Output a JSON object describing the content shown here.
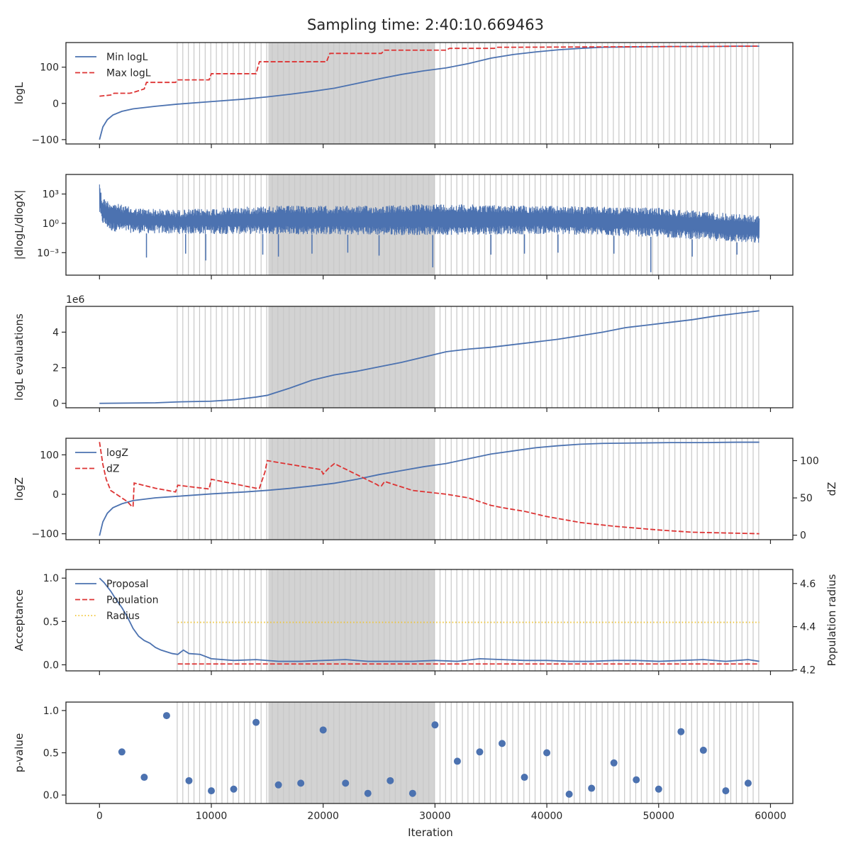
{
  "title": "Sampling time: 2:40:10.669463",
  "x_axis": {
    "label": "Iteration",
    "ticks": [
      0,
      10000,
      20000,
      30000,
      40000,
      50000,
      60000
    ],
    "xlim": [
      -3000,
      62000
    ]
  },
  "colors": {
    "blue": "#4c72b0",
    "red": "#dd3333",
    "gold": "#f0c430",
    "band": "#d3d3d3",
    "vline": "#c8c8c8"
  },
  "shading": {
    "dense_region": [
      15100,
      30000
    ],
    "vlines": [
      6950,
      7450,
      7950,
      8450,
      8950,
      9450,
      9950,
      10450,
      10950,
      11450,
      11950,
      12450,
      12950,
      13450,
      13950,
      14450,
      14950,
      15450,
      15950,
      16450,
      16950,
      17450,
      17950,
      18450,
      18950,
      19450,
      19950,
      20450,
      20950,
      21450,
      21950,
      22450,
      22950,
      23450,
      23950,
      24450,
      24950,
      25450,
      25950,
      26450,
      26950,
      27450,
      27950,
      28450,
      28950,
      29450,
      29950,
      30450,
      30950,
      31450,
      31950,
      32450,
      32950,
      33450,
      33950,
      34450,
      34950,
      35450,
      35950,
      36450,
      36950,
      37450,
      37950,
      38450,
      38950,
      39450,
      39950,
      40450,
      40950,
      41450,
      41950,
      42450,
      42950,
      43450,
      43950,
      44450,
      44950,
      45450,
      45950,
      46450,
      46950,
      47450,
      47950,
      48450,
      48950,
      49450,
      49950,
      50450,
      50950,
      51450,
      51950,
      52450,
      52950,
      53450,
      53950,
      54450,
      54950,
      55450,
      55950,
      56450,
      56950,
      57450,
      57950,
      58450,
      58950
    ]
  },
  "chart_data": [
    {
      "type": "line",
      "ylabel": "logL",
      "yticks": [
        -100,
        0,
        100
      ],
      "ylim": [
        -112,
        168
      ],
      "legend": "top-left",
      "series": [
        {
          "name": "Min logL",
          "style": "solid",
          "color": "#4c72b0",
          "x": [
            0,
            300,
            700,
            1200,
            2000,
            3000,
            5000,
            7000,
            10000,
            13000,
            15000,
            17000,
            19000,
            21000,
            23000,
            25000,
            27000,
            29000,
            31000,
            33000,
            35000,
            37000,
            39000,
            41000,
            43000,
            45000,
            48000,
            51000,
            54000,
            57000,
            59000
          ],
          "y": [
            -100,
            -65,
            -45,
            -32,
            -22,
            -15,
            -8,
            -2,
            5,
            12,
            18,
            25,
            33,
            42,
            55,
            68,
            80,
            90,
            98,
            110,
            125,
            135,
            142,
            148,
            152,
            155,
            156,
            157,
            157,
            158,
            158
          ]
        },
        {
          "name": "Max logL",
          "style": "dashed",
          "color": "#dd3333",
          "x": [
            0,
            1000,
            1300,
            2700,
            3000,
            4000,
            4200,
            6800,
            7000,
            9800,
            10000,
            14000,
            14300,
            20300,
            20600,
            25200,
            25500,
            31000,
            31300,
            35300,
            35600,
            37000,
            59000
          ],
          "y": [
            20,
            23,
            28,
            28,
            30,
            40,
            58,
            58,
            65,
            65,
            82,
            82,
            115,
            115,
            138,
            138,
            147,
            147,
            152,
            152,
            155,
            155,
            158
          ]
        }
      ]
    },
    {
      "type": "line",
      "ylabel": "|dlogL/dlogX|",
      "ylog": true,
      "ytick_labels": [
        "10³",
        "10⁰",
        "10⁻³"
      ],
      "ytick_exponents": [
        3,
        0,
        -3
      ],
      "ylim_log10": [
        -5.3,
        5
      ],
      "series": [
        {
          "name": "",
          "style": "noisy-band",
          "color": "#4c72b0",
          "x": [
            0,
            200,
            1000,
            3000,
            7000,
            15000,
            25000,
            30000,
            40000,
            50000,
            59000
          ],
          "upper_log10": [
            4.5,
            2.7,
            2.2,
            1.6,
            1.4,
            1.8,
            1.8,
            2.0,
            1.8,
            1.6,
            0.8
          ],
          "lower_log10": [
            1.0,
            0.0,
            -0.8,
            -1.0,
            -1.1,
            -1.1,
            -1.2,
            -1.2,
            -1.1,
            -1.4,
            -2.1
          ],
          "spikes": [
            [
              4200,
              -3.5
            ],
            [
              7700,
              -3.1
            ],
            [
              9500,
              -3.8
            ],
            [
              14600,
              -3.2
            ],
            [
              16000,
              -3.4
            ],
            [
              19000,
              -3.1
            ],
            [
              22200,
              -3.0
            ],
            [
              25000,
              -3.3
            ],
            [
              29800,
              -4.5
            ],
            [
              35000,
              -3.2
            ],
            [
              38000,
              -3.1
            ],
            [
              41000,
              -3.0
            ],
            [
              46000,
              -3.1
            ],
            [
              49300,
              -5.0
            ],
            [
              53000,
              -3.4
            ],
            [
              57000,
              -3.2
            ]
          ]
        }
      ]
    },
    {
      "type": "line",
      "ylabel": "logL evaluations",
      "offset_label": "1e6",
      "yticks": [
        0,
        2,
        4
      ],
      "ylim": [
        -0.25,
        5.45
      ],
      "series": [
        {
          "name": "",
          "style": "solid",
          "color": "#4c72b0",
          "x": [
            0,
            5000,
            7000,
            10000,
            12000,
            14000,
            15000,
            17000,
            19000,
            21000,
            23000,
            25000,
            27000,
            29000,
            31000,
            33000,
            35000,
            37000,
            39000,
            41000,
            43000,
            45000,
            47000,
            49000,
            51000,
            53000,
            55000,
            57000,
            59000
          ],
          "y": [
            0,
            0.03,
            0.08,
            0.12,
            0.2,
            0.35,
            0.45,
            0.85,
            1.3,
            1.6,
            1.8,
            2.05,
            2.3,
            2.6,
            2.9,
            3.05,
            3.15,
            3.3,
            3.45,
            3.6,
            3.8,
            4.0,
            4.25,
            4.4,
            4.55,
            4.7,
            4.9,
            5.05,
            5.2
          ]
        }
      ]
    },
    {
      "type": "line",
      "ylabel": "logZ",
      "y2label": "dZ",
      "yticks": [
        -100,
        0,
        100
      ],
      "ylim": [
        -115,
        142
      ],
      "y2ticks": [
        0,
        50,
        100
      ],
      "y2lim": [
        -6,
        130
      ],
      "legend": "top-left",
      "series": [
        {
          "name": "logZ",
          "style": "solid",
          "color": "#4c72b0",
          "axis": "left",
          "x": [
            0,
            300,
            700,
            1200,
            2000,
            3000,
            5000,
            7000,
            10000,
            13000,
            15000,
            17000,
            19000,
            21000,
            23000,
            25000,
            27000,
            29000,
            31000,
            33000,
            35000,
            37000,
            39000,
            41000,
            43000,
            45000,
            48000,
            51000,
            54000,
            57000,
            59000
          ],
          "y": [
            -105,
            -70,
            -48,
            -34,
            -24,
            -16,
            -9,
            -5,
            1,
            6,
            10,
            15,
            21,
            28,
            38,
            50,
            60,
            70,
            78,
            90,
            102,
            110,
            118,
            123,
            127,
            129,
            130,
            131,
            131,
            132,
            132
          ]
        },
        {
          "name": "dZ",
          "style": "dashed",
          "color": "#dd3333",
          "axis": "right",
          "x": [
            0,
            300,
            600,
            1000,
            1500,
            2000,
            2500,
            2800,
            3000,
            3100,
            5000,
            6800,
            7000,
            9800,
            10000,
            14000,
            14300,
            14800,
            15000,
            19800,
            20000,
            20500,
            21000,
            24800,
            25000,
            25200,
            25500,
            28000,
            31000,
            33000,
            34000,
            35000,
            36000,
            38000,
            40000,
            43000,
            46000,
            50000,
            53000,
            56000,
            59000
          ],
          "y": [
            125,
            95,
            75,
            60,
            55,
            50,
            45,
            40,
            38,
            70,
            63,
            58,
            67,
            62,
            75,
            63,
            63,
            85,
            100,
            88,
            82,
            90,
            96,
            68,
            66,
            66,
            72,
            60,
            55,
            50,
            45,
            40,
            37,
            32,
            25,
            17,
            12,
            7,
            4,
            3,
            2
          ]
        }
      ]
    },
    {
      "type": "line",
      "ylabel": "Acceptance",
      "y2label": "Population radius",
      "yticks": [
        0.0,
        0.5,
        1.0
      ],
      "ytick_labels": [
        "0.0",
        "0.5",
        "1.0"
      ],
      "ylim": [
        -0.07,
        1.1
      ],
      "y2ticks": [
        4.2,
        4.4,
        4.6
      ],
      "y2lim": [
        4.195,
        4.665
      ],
      "legend": "top-left",
      "series": [
        {
          "name": "Proposal",
          "style": "solid",
          "color": "#4c72b0",
          "axis": "left",
          "x": [
            0,
            400,
            1000,
            1500,
            2000,
            2500,
            3000,
            3500,
            4000,
            4500,
            5000,
            5500,
            6000,
            6500,
            7000,
            7500,
            8000,
            9000,
            10000,
            12000,
            14000,
            16000,
            18000,
            20000,
            22000,
            24000,
            26000,
            28000,
            30000,
            32000,
            34000,
            36000,
            38000,
            40000,
            42000,
            44000,
            46000,
            48000,
            50000,
            52000,
            54000,
            56000,
            58000,
            59000
          ],
          "y": [
            1.0,
            0.95,
            0.85,
            0.75,
            0.66,
            0.55,
            0.42,
            0.33,
            0.28,
            0.25,
            0.2,
            0.17,
            0.15,
            0.13,
            0.12,
            0.17,
            0.13,
            0.12,
            0.07,
            0.05,
            0.06,
            0.04,
            0.04,
            0.05,
            0.06,
            0.04,
            0.04,
            0.04,
            0.05,
            0.04,
            0.07,
            0.06,
            0.05,
            0.05,
            0.04,
            0.04,
            0.05,
            0.05,
            0.04,
            0.05,
            0.06,
            0.04,
            0.06,
            0.04
          ]
        },
        {
          "name": "Population",
          "style": "dashed",
          "color": "#dd3333",
          "axis": "left",
          "x": [
            7000,
            59000
          ],
          "y": [
            0.01,
            0.01
          ]
        },
        {
          "name": "Radius",
          "style": "dotted",
          "color": "#f0c430",
          "axis": "right",
          "x": [
            7000,
            59000
          ],
          "y": [
            4.42,
            4.42
          ]
        }
      ]
    },
    {
      "type": "scatter",
      "ylabel": "p-value",
      "yticks": [
        0.0,
        0.5,
        1.0
      ],
      "ytick_labels": [
        "0.0",
        "0.5",
        "1.0"
      ],
      "ylim": [
        -0.1,
        1.1
      ],
      "series": [
        {
          "name": "",
          "color": "#4c72b0",
          "x": [
            2000,
            4000,
            6000,
            8000,
            10000,
            12000,
            14000,
            16000,
            18000,
            20000,
            22000,
            24000,
            26000,
            28000,
            30000,
            32000,
            34000,
            36000,
            38000,
            40000,
            42000,
            44000,
            46000,
            48000,
            50000,
            52000,
            54000,
            56000,
            58000
          ],
          "y": [
            0.51,
            0.21,
            0.94,
            0.17,
            0.05,
            0.07,
            0.86,
            0.12,
            0.14,
            0.77,
            0.14,
            0.02,
            0.17,
            0.02,
            0.83,
            0.4,
            0.51,
            0.61,
            0.21,
            0.5,
            0.01,
            0.08,
            0.38,
            0.18,
            0.07,
            0.75,
            0.53,
            0.05,
            0.14
          ]
        }
      ]
    }
  ]
}
